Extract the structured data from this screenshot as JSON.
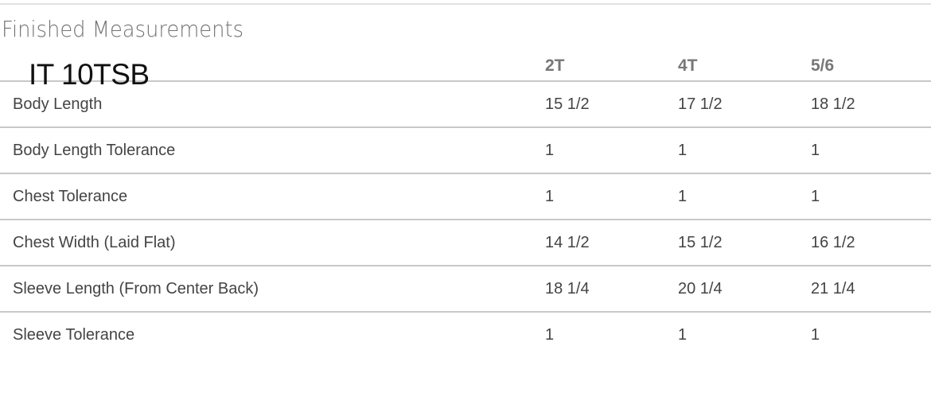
{
  "title": "Finished Measurements",
  "overlay_label": "IT 10TSB",
  "columns": [
    "2T",
    "4T",
    "5/6"
  ],
  "rows": [
    {
      "label": "Body Length",
      "values": [
        "15 1/2",
        "17 1/2",
        "18 1/2"
      ]
    },
    {
      "label": "Body Length Tolerance",
      "values": [
        "1",
        "1",
        "1"
      ]
    },
    {
      "label": "Chest Tolerance",
      "values": [
        "1",
        "1",
        "1"
      ]
    },
    {
      "label": "Chest Width (Laid Flat)",
      "values": [
        "14 1/2",
        "15 1/2",
        "16 1/2"
      ]
    },
    {
      "label": "Sleeve Length (From Center Back)",
      "values": [
        "18 1/4",
        "20 1/4",
        "21 1/4"
      ]
    },
    {
      "label": "Sleeve Tolerance",
      "values": [
        "1",
        "1",
        "1"
      ]
    }
  ]
}
